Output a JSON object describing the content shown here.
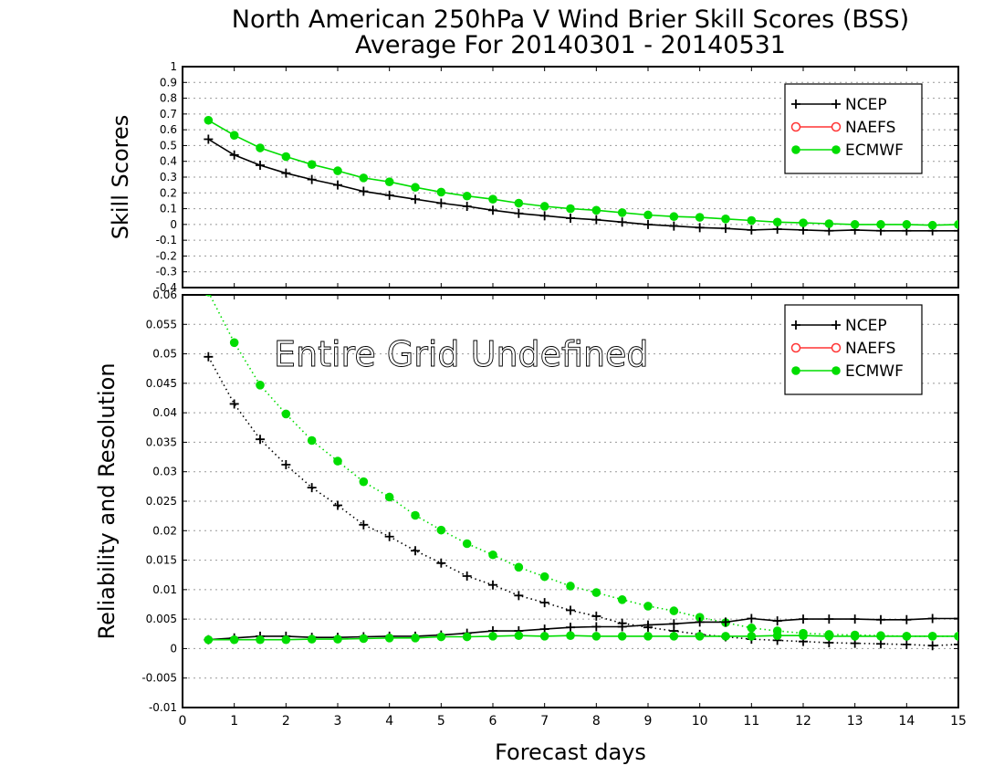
{
  "title_line1": "North American 250hPa V Wind Brier Skill Scores (BSS)",
  "title_line2": "Average For 20140301 - 20140531",
  "colors": {
    "ncep": "#000000",
    "naefs": "#ff3333",
    "ecmwf": "#00dd00"
  },
  "chart_data": [
    {
      "type": "line",
      "panel": "top",
      "ylabel": "Skill Scores",
      "xlabel": "",
      "xlim": [
        0,
        15
      ],
      "ylim": [
        -0.4,
        1
      ],
      "yticks": [
        "-0.4",
        "-0.3",
        "-0.2",
        "-0.1",
        "0",
        "0.1",
        "0.2",
        "0.3",
        "0.4",
        "0.5",
        "0.6",
        "0.7",
        "0.8",
        "0.9",
        "1"
      ],
      "grid": true,
      "legend_position": "top-right",
      "legend": [
        "NCEP",
        "NAEFS",
        "ECMWF"
      ],
      "x": [
        0.5,
        1,
        1.5,
        2,
        2.5,
        3,
        3.5,
        4,
        4.5,
        5,
        5.5,
        6,
        6.5,
        7,
        7.5,
        8,
        8.5,
        9,
        9.5,
        10,
        10.5,
        11,
        11.5,
        12,
        12.5,
        13,
        13.5,
        14,
        14.5,
        15
      ],
      "series": [
        {
          "name": "NCEP",
          "style": "solid-plus",
          "values": [
            0.54,
            0.44,
            0.375,
            0.325,
            0.285,
            0.25,
            0.21,
            0.185,
            0.16,
            0.135,
            0.115,
            0.09,
            0.07,
            0.055,
            0.04,
            0.03,
            0.015,
            0.0,
            -0.01,
            -0.02,
            -0.025,
            -0.035,
            -0.03,
            -0.035,
            -0.04,
            -0.035,
            -0.04,
            -0.04,
            -0.04,
            -0.04
          ]
        },
        {
          "name": "ECMWF",
          "style": "solid-dot",
          "values": [
            0.66,
            0.565,
            0.485,
            0.43,
            0.38,
            0.34,
            0.295,
            0.27,
            0.235,
            0.205,
            0.18,
            0.16,
            0.135,
            0.115,
            0.1,
            0.09,
            0.075,
            0.06,
            0.05,
            0.045,
            0.035,
            0.025,
            0.015,
            0.01,
            0.005,
            0.0,
            0.0,
            0.0,
            -0.005,
            0.0
          ]
        }
      ]
    },
    {
      "type": "line",
      "panel": "bottom",
      "ylabel": "Reliability and Resolution",
      "xlabel": "Forecast days",
      "xlim": [
        0,
        15
      ],
      "ylim": [
        -0.01,
        0.06
      ],
      "yticks": [
        "-0.01",
        "-0.005",
        "0",
        "0.005",
        "0.01",
        "0.015",
        "0.02",
        "0.025",
        "0.03",
        "0.035",
        "0.04",
        "0.045",
        "0.05",
        "0.055",
        "0.06"
      ],
      "xticks": [
        "0",
        "1",
        "2",
        "3",
        "4",
        "5",
        "6",
        "7",
        "8",
        "9",
        "10",
        "11",
        "12",
        "13",
        "14",
        "15"
      ],
      "grid": true,
      "legend_position": "top-right",
      "legend": [
        "NCEP",
        "NAEFS",
        "ECMWF"
      ],
      "annotation": "Entire Grid Undefined",
      "x": [
        0.5,
        1,
        1.5,
        2,
        2.5,
        3,
        3.5,
        4,
        4.5,
        5,
        5.5,
        6,
        6.5,
        7,
        7.5,
        8,
        8.5,
        9,
        9.5,
        10,
        10.5,
        11,
        11.5,
        12,
        12.5,
        13,
        13.5,
        14,
        14.5,
        15
      ],
      "series": [
        {
          "name": "NCEP",
          "style": "dotted-plus",
          "values": [
            0.0495,
            0.0415,
            0.0355,
            0.0312,
            0.0273,
            0.0243,
            0.021,
            0.019,
            0.0166,
            0.0145,
            0.0123,
            0.0108,
            0.009,
            0.0078,
            0.0065,
            0.0055,
            0.0043,
            0.0036,
            0.003,
            0.0024,
            0.002,
            0.0016,
            0.0014,
            0.0012,
            0.001,
            0.0009,
            0.0008,
            0.0007,
            0.0005,
            0.0007
          ]
        },
        {
          "name": "ECMWF",
          "style": "dotted-dot",
          "values": [
            0.0605,
            0.0519,
            0.0447,
            0.0398,
            0.0353,
            0.0318,
            0.0283,
            0.0257,
            0.0226,
            0.0201,
            0.0178,
            0.0159,
            0.0138,
            0.0122,
            0.0106,
            0.0095,
            0.0083,
            0.0072,
            0.0064,
            0.0053,
            0.0044,
            0.0035,
            0.003,
            0.0026,
            0.0024,
            0.0023,
            0.0022,
            0.0021,
            0.0021,
            0.0021
          ]
        },
        {
          "name": "NCEP",
          "style": "solid-plus",
          "values": [
            0.0015,
            0.0018,
            0.0021,
            0.0021,
            0.0019,
            0.0019,
            0.002,
            0.0021,
            0.0021,
            0.0023,
            0.0026,
            0.003,
            0.003,
            0.0033,
            0.0036,
            0.0037,
            0.0037,
            0.004,
            0.0042,
            0.0045,
            0.0045,
            0.0051,
            0.0047,
            0.005,
            0.005,
            0.005,
            0.0049,
            0.0049,
            0.0051,
            0.0051
          ]
        },
        {
          "name": "ECMWF",
          "style": "solid-dot",
          "values": [
            0.0015,
            0.0015,
            0.0015,
            0.0015,
            0.0016,
            0.0016,
            0.0017,
            0.0018,
            0.0018,
            0.002,
            0.002,
            0.0021,
            0.0022,
            0.0021,
            0.0022,
            0.0021,
            0.0021,
            0.0021,
            0.0021,
            0.0021,
            0.0021,
            0.0021,
            0.0022,
            0.0022,
            0.0021,
            0.0021,
            0.0021,
            0.0021,
            0.0021,
            0.0021
          ]
        }
      ]
    }
  ]
}
